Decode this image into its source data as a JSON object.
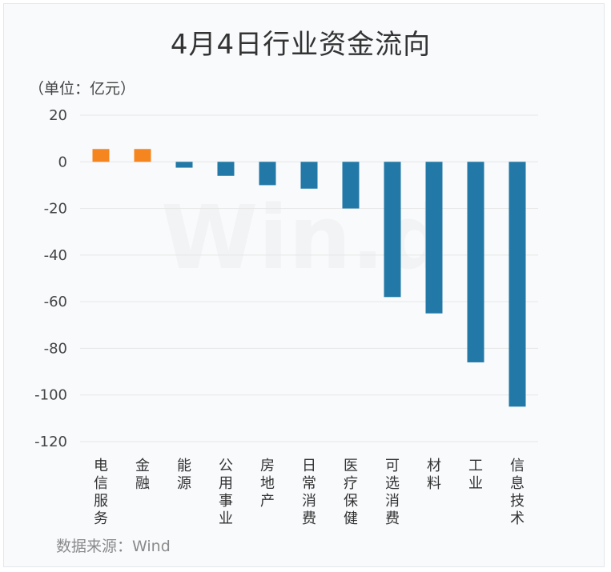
{
  "header": {
    "title": "4月4日行业资金流向",
    "unit": "（单位：亿元）"
  },
  "footer": {
    "source": "数据来源：Wind"
  },
  "watermark": "Win.d",
  "colors": {
    "positive": "#f5861f",
    "negative": "#2278a6",
    "grid": "#e6e6e6"
  },
  "chart_data": {
    "type": "bar",
    "categories": [
      "电信服务",
      "金融",
      "能源",
      "公用事业",
      "房地产",
      "日常消费",
      "医疗保健",
      "可选消费",
      "材料",
      "工业",
      "信息技术"
    ],
    "values": [
      5.5,
      5.5,
      -2.5,
      -6,
      -10,
      -11.5,
      -20,
      -58,
      -65,
      -86,
      -105
    ],
    "ylim": [
      -120,
      20
    ],
    "yticks": [
      20,
      0,
      -20,
      -40,
      -60,
      -80,
      -100,
      -120
    ],
    "ytick_labels": [
      "20",
      "0",
      "-20",
      "-40",
      "-60",
      "-80",
      "-100",
      "-120"
    ],
    "xlabel": "",
    "ylabel": "",
    "grid": true
  }
}
